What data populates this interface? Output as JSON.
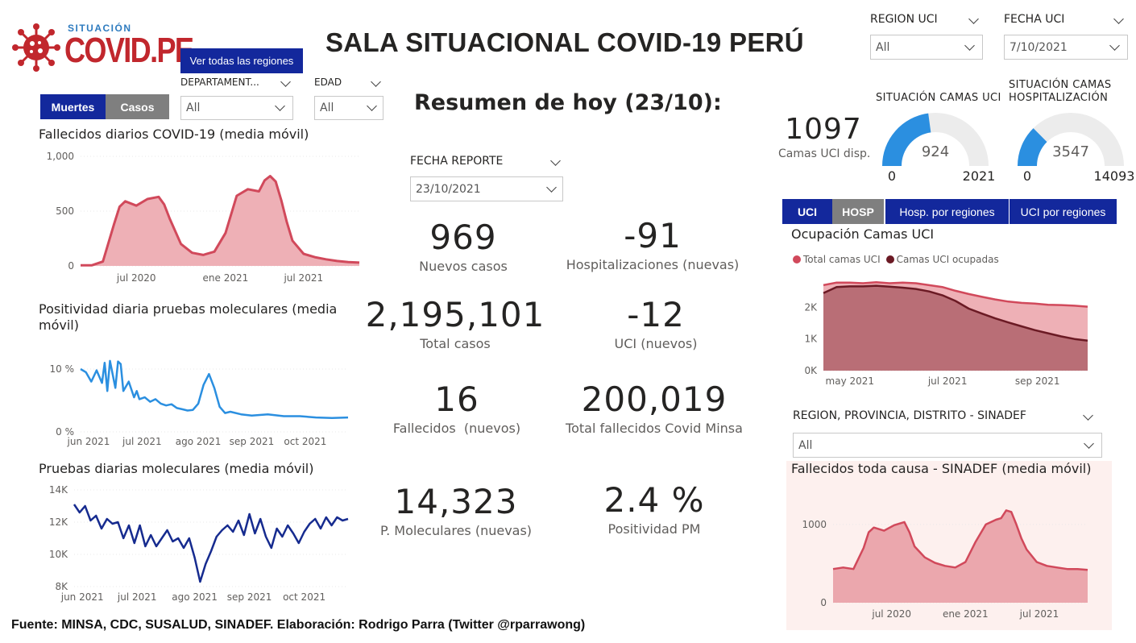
{
  "header": {
    "logo_top": "SITUACIÓN",
    "logo_main": "COVID.PE",
    "title": "SALA SITUACIONAL COVID-19 PERÚ",
    "nav_button": "Ver todas las regiones"
  },
  "filters": {
    "departamento": {
      "label": "DEPARTAMENT...",
      "value": "All"
    },
    "edad": {
      "label": "EDAD",
      "value": "All"
    },
    "region_uci": {
      "label": "REGION UCI",
      "value": "All"
    },
    "fecha_uci": {
      "label": "FECHA UCI",
      "value": "7/10/2021"
    },
    "fecha_reporte": {
      "label": "FECHA REPORTE",
      "value": "23/10/2021"
    },
    "sinadef_region": {
      "label": "REGION, PROVINCIA, DISTRITO - SINADEF",
      "value": "All"
    }
  },
  "left_toggle": {
    "active": "Muertes",
    "inactive": "Casos"
  },
  "summary": {
    "title": "Resumen de hoy (23/10):",
    "kpis": [
      {
        "value": "969",
        "label": "Nuevos casos"
      },
      {
        "value": "-91",
        "label": "Hospitalizaciones (nuevas)"
      },
      {
        "value": "2,195,101",
        "label": "Total casos"
      },
      {
        "value": "-12",
        "label": "UCI (nuevos)"
      },
      {
        "value": "16",
        "label": "Fallecidos  (nuevos)"
      },
      {
        "value": "200,019",
        "label": "Total fallecidos Covid Minsa"
      },
      {
        "value": "14,323",
        "label": "P. Moleculares (nuevas)"
      },
      {
        "value": "2.4 %",
        "label": "Positividad PM"
      }
    ]
  },
  "uci": {
    "camas_disp_value": "1097",
    "camas_disp_label": "Camas UCI disp.",
    "gauge_uci": {
      "title": "SITUACIÓN CAMAS UCI",
      "value": 924,
      "min": 0,
      "max": 2021,
      "value_label": "924",
      "min_label": "0",
      "max_label": "2021"
    },
    "gauge_hosp": {
      "title": "SITUACIÓN CAMAS HOSPITALIZACIÓN",
      "value": 3547,
      "min": 0,
      "max": 14093,
      "value_label": "3547",
      "min_label": "0",
      "max_label": "14093"
    },
    "tabs": [
      "UCI",
      "HOSP",
      "Hosp. por regiones",
      "UCI por regiones"
    ]
  },
  "colors": {
    "accent_blue": "#13289c",
    "deaths_red": "#d1495b",
    "deaths_fill": "#eeb0b6",
    "positivity_blue": "#2b8fe0",
    "tests_navy": "#162b8f",
    "gauge_blue": "#2b8fe0",
    "gauge_grey": "#ececec",
    "occupied_dark": "#6b1a24"
  },
  "chart_data": [
    {
      "type": "area",
      "title": "Fallecidos diarios COVID-19 (media móvil)",
      "x_ticks": [
        "jul 2020",
        "ene 2021",
        "jul 2021"
      ],
      "y_ticks": [
        "0",
        "500",
        "1,000"
      ],
      "ylim": [
        0,
        1000
      ],
      "x": [
        0,
        0.04,
        0.08,
        0.12,
        0.14,
        0.16,
        0.2,
        0.24,
        0.28,
        0.3,
        0.32,
        0.36,
        0.4,
        0.44,
        0.48,
        0.52,
        0.56,
        0.6,
        0.64,
        0.66,
        0.68,
        0.7,
        0.72,
        0.74,
        0.76,
        0.8,
        0.84,
        0.88,
        0.92,
        0.96,
        1.0
      ],
      "values": [
        5,
        5,
        40,
        380,
        540,
        590,
        550,
        610,
        630,
        560,
        430,
        200,
        120,
        100,
        130,
        300,
        640,
        700,
        680,
        780,
        820,
        770,
        600,
        400,
        230,
        110,
        80,
        60,
        45,
        35,
        30
      ]
    },
    {
      "type": "line",
      "title": "Positividad diaria pruebas moleculares (media móvil)",
      "x_ticks": [
        "jun 2021",
        "jul 2021",
        "ago 2021",
        "sep 2021",
        "oct 2021"
      ],
      "y_ticks": [
        "0 %",
        "10 %"
      ],
      "ylim": [
        0,
        10
      ],
      "x": [
        0,
        0.02,
        0.04,
        0.06,
        0.08,
        0.09,
        0.1,
        0.11,
        0.13,
        0.14,
        0.15,
        0.16,
        0.18,
        0.2,
        0.21,
        0.22,
        0.24,
        0.26,
        0.28,
        0.3,
        0.32,
        0.34,
        0.36,
        0.38,
        0.4,
        0.42,
        0.44,
        0.46,
        0.48,
        0.5,
        0.52,
        0.54,
        0.56,
        0.6,
        0.64,
        0.7,
        0.76,
        0.82,
        0.88,
        0.94,
        1.0
      ],
      "values": [
        10,
        9.5,
        8,
        9.8,
        7.8,
        11,
        6.5,
        11.3,
        7,
        11.2,
        10.8,
        6.5,
        8,
        5.5,
        6.5,
        5.2,
        5.5,
        4.8,
        5.2,
        4.5,
        4.2,
        4.4,
        3.8,
        3.6,
        3.4,
        3.5,
        4.5,
        7.5,
        9.2,
        7.0,
        4.0,
        3.0,
        3.2,
        2.8,
        2.6,
        2.8,
        2.5,
        2.5,
        2.3,
        2.2,
        2.3
      ]
    },
    {
      "type": "line",
      "title": "Pruebas diarias moleculares (media móvil)",
      "x_ticks": [
        "jun 2021",
        "jul 2021",
        "ago 2021",
        "sep 2021",
        "oct 2021"
      ],
      "y_ticks": [
        "8K",
        "10K",
        "12K",
        "14K"
      ],
      "ylim": [
        8000,
        14000
      ],
      "x": [
        0,
        0.02,
        0.04,
        0.06,
        0.08,
        0.1,
        0.12,
        0.14,
        0.16,
        0.18,
        0.2,
        0.22,
        0.24,
        0.26,
        0.28,
        0.3,
        0.32,
        0.34,
        0.36,
        0.38,
        0.4,
        0.42,
        0.44,
        0.46,
        0.48,
        0.5,
        0.52,
        0.54,
        0.56,
        0.58,
        0.6,
        0.62,
        0.64,
        0.66,
        0.68,
        0.7,
        0.72,
        0.74,
        0.76,
        0.78,
        0.8,
        0.82,
        0.84,
        0.86,
        0.88,
        0.9,
        0.92,
        0.94,
        0.96,
        0.98,
        1.0
      ],
      "values": [
        13100,
        12600,
        13000,
        12100,
        12400,
        11600,
        12200,
        11900,
        12000,
        11000,
        11800,
        10700,
        11800,
        10500,
        11200,
        10500,
        11000,
        11500,
        10800,
        11000,
        10400,
        11000,
        9800,
        8300,
        9400,
        10200,
        11100,
        11500,
        11800,
        11400,
        12100,
        11200,
        12500,
        11300,
        12200,
        11100,
        10400,
        11600,
        11100,
        11800,
        11300,
        10700,
        11400,
        11900,
        12200,
        11600,
        12300,
        11800,
        12300,
        12100,
        12200
      ]
    },
    {
      "type": "area",
      "title": "Ocupación Camas UCI",
      "legend": [
        "Total camas UCI",
        "Camas UCI ocupadas"
      ],
      "x_ticks": [
        "may 2021",
        "jul 2021",
        "sep 2021"
      ],
      "y_ticks": [
        "0K",
        "1K",
        "2K"
      ],
      "ylim": [
        0,
        2900
      ],
      "x": [
        0,
        0.05,
        0.1,
        0.15,
        0.2,
        0.25,
        0.3,
        0.35,
        0.4,
        0.45,
        0.5,
        0.55,
        0.6,
        0.65,
        0.7,
        0.75,
        0.8,
        0.85,
        0.9,
        0.95,
        1.0
      ],
      "series": [
        {
          "name": "Total camas UCI",
          "values": [
            2700,
            2780,
            2780,
            2760,
            2790,
            2760,
            2780,
            2760,
            2700,
            2640,
            2520,
            2420,
            2330,
            2250,
            2180,
            2140,
            2120,
            2080,
            2070,
            2050,
            2020
          ]
        },
        {
          "name": "Camas UCI ocupadas",
          "values": [
            2450,
            2640,
            2660,
            2660,
            2680,
            2650,
            2620,
            2580,
            2500,
            2380,
            2200,
            1960,
            1800,
            1650,
            1520,
            1400,
            1280,
            1180,
            1080,
            1000,
            950
          ]
        }
      ]
    },
    {
      "type": "area",
      "title": "Fallecidos toda causa - SINADEF (media móvil)",
      "x_ticks": [
        "jul 2020",
        "ene 2021",
        "jul 2021"
      ],
      "y_ticks": [
        "0",
        "1000"
      ],
      "ylim": [
        0,
        1400
      ],
      "x": [
        0,
        0.04,
        0.08,
        0.12,
        0.14,
        0.16,
        0.2,
        0.24,
        0.28,
        0.3,
        0.32,
        0.36,
        0.4,
        0.44,
        0.48,
        0.52,
        0.56,
        0.6,
        0.64,
        0.66,
        0.68,
        0.7,
        0.72,
        0.74,
        0.76,
        0.8,
        0.84,
        0.88,
        0.92,
        0.96,
        1.0
      ],
      "values": [
        430,
        450,
        430,
        700,
        900,
        960,
        920,
        990,
        1030,
        900,
        720,
        580,
        510,
        470,
        450,
        520,
        780,
        1000,
        1060,
        1080,
        1180,
        1160,
        1000,
        820,
        680,
        520,
        470,
        450,
        430,
        430,
        420
      ]
    }
  ],
  "footer": "Fuente: MINSA, CDC, SUSALUD, SINADEF. Elaboración: Rodrigo Parra (Twitter @rparrawong)"
}
